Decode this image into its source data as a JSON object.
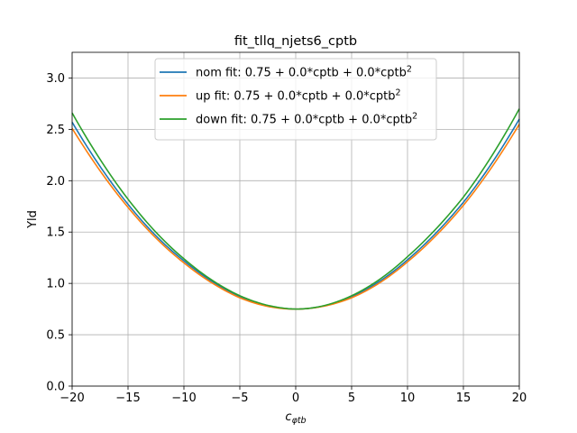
{
  "chart_data": {
    "type": "line",
    "title": "fit_tllq_njets6_cptb",
    "xlabel_main": "c",
    "xlabel_sub": "φtb",
    "ylabel": "Yld",
    "xlim": [
      -20,
      20
    ],
    "ylim": [
      0.0,
      3.25
    ],
    "xticks": [
      -20,
      -15,
      -10,
      -5,
      0,
      5,
      10,
      15,
      20
    ],
    "xtick_labels": [
      "−20",
      "−15",
      "−10",
      "−5",
      "0",
      "5",
      "10",
      "15",
      "20"
    ],
    "yticks": [
      0.0,
      0.5,
      1.0,
      1.5,
      2.0,
      2.5,
      3.0
    ],
    "ytick_labels": [
      "0.0",
      "0.5",
      "1.0",
      "1.5",
      "2.0",
      "2.5",
      "3.0"
    ],
    "grid": true,
    "legend_position": "top-center",
    "series": [
      {
        "name": "nom fit: 0.75 + 0.0*cptb + 0.0*cptb",
        "name_superscript": "2",
        "color": "#1f77b4",
        "x": [
          -20,
          -15,
          -10,
          -5,
          0,
          5,
          10,
          15,
          20
        ],
        "y": [
          2.57,
          1.77,
          1.22,
          0.87,
          0.75,
          0.87,
          1.23,
          1.79,
          2.6
        ]
      },
      {
        "name": "up fit: 0.75 + 0.0*cptb + 0.0*cptb",
        "name_superscript": "2",
        "color": "#ff7f0e",
        "x": [
          -20,
          -15,
          -10,
          -5,
          0,
          5,
          10,
          15,
          20
        ],
        "y": [
          2.51,
          1.74,
          1.2,
          0.86,
          0.75,
          0.86,
          1.21,
          1.76,
          2.55
        ]
      },
      {
        "name": "down fit: 0.75 + 0.0*cptb + 0.0*cptb",
        "name_superscript": "2",
        "color": "#2ca02c",
        "x": [
          -20,
          -15,
          -10,
          -5,
          0,
          5,
          10,
          15,
          20
        ],
        "y": [
          2.66,
          1.82,
          1.24,
          0.88,
          0.75,
          0.88,
          1.26,
          1.84,
          2.7
        ]
      }
    ]
  }
}
